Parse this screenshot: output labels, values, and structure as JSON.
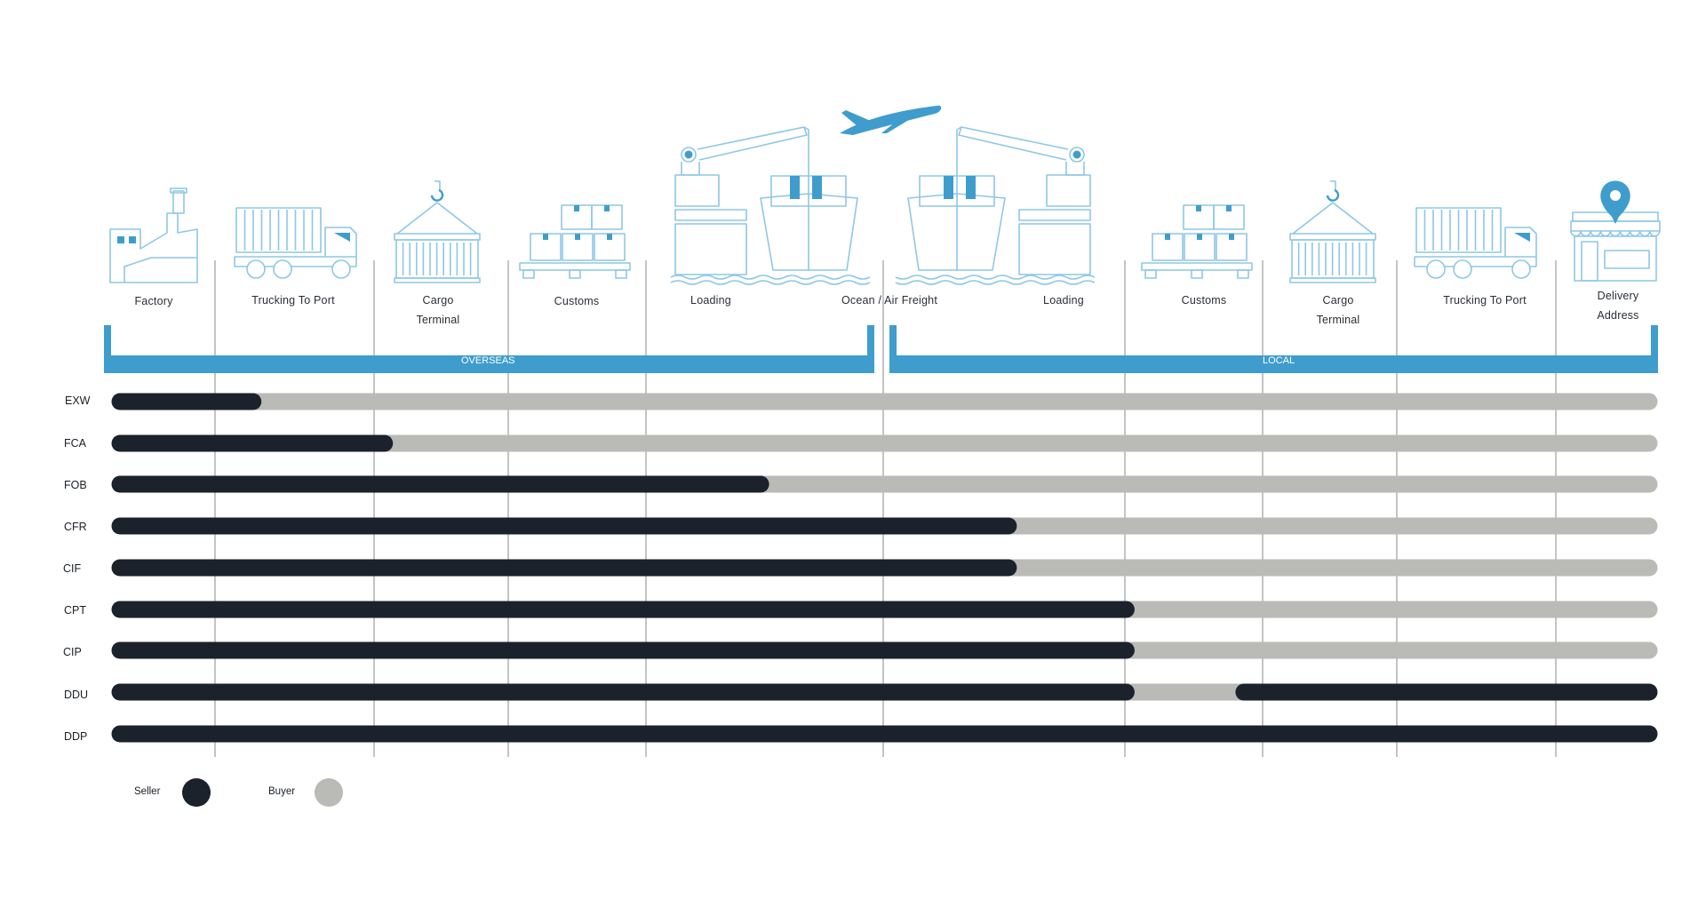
{
  "colors": {
    "accent": "#3f9dcd",
    "icon_stroke": "#8ec7e6",
    "seller": "#1b222b",
    "buyer": "#babab6",
    "divider": "#8a8a8a"
  },
  "steps": [
    {
      "label": "Factory",
      "icon": "factory-icon"
    },
    {
      "label": "Trucking To Port",
      "icon": "truck-icon"
    },
    {
      "label": "Cargo\nTerminal",
      "icon": "container-crane-icon"
    },
    {
      "label": "Customs",
      "icon": "boxes-pallet-icon"
    },
    {
      "label": "Loading",
      "icon": "crane-ship-icon"
    },
    {
      "label": "Ocean / Air Freight",
      "icon": "airplane-icon"
    },
    {
      "label": "Loading",
      "icon": "crane-ship-icon"
    },
    {
      "label": "Customs",
      "icon": "boxes-pallet-icon"
    },
    {
      "label": "Cargo\nTerminal",
      "icon": "container-crane-icon"
    },
    {
      "label": "Trucking To Port",
      "icon": "truck-icon"
    },
    {
      "label": "Delivery\nAddress",
      "icon": "store-pin-icon"
    }
  ],
  "regions": {
    "overseas": "OVERSEAS",
    "local": "LOCAL"
  },
  "incoterms": [
    {
      "code": "EXW",
      "segments": [
        {
          "party": "seller",
          "from": 0,
          "to": 0.087
        },
        {
          "party": "buyer",
          "from": 0.087,
          "to": 1
        }
      ]
    },
    {
      "code": "FCA",
      "segments": [
        {
          "party": "seller",
          "from": 0,
          "to": 0.173
        },
        {
          "party": "buyer",
          "from": 0.173,
          "to": 1
        }
      ]
    },
    {
      "code": "FOB",
      "segments": [
        {
          "party": "seller",
          "from": 0,
          "to": 0.419
        },
        {
          "party": "buyer",
          "from": 0.419,
          "to": 1
        }
      ]
    },
    {
      "code": "CFR",
      "segments": [
        {
          "party": "seller",
          "from": 0,
          "to": 0.581
        },
        {
          "party": "buyer",
          "from": 0.581,
          "to": 1
        }
      ]
    },
    {
      "code": "CIF",
      "segments": [
        {
          "party": "seller",
          "from": 0,
          "to": 0.581
        },
        {
          "party": "buyer",
          "from": 0.581,
          "to": 1
        }
      ]
    },
    {
      "code": "CPT",
      "segments": [
        {
          "party": "seller",
          "from": 0,
          "to": 0.658
        },
        {
          "party": "buyer",
          "from": 0.658,
          "to": 1
        }
      ]
    },
    {
      "code": "CIP",
      "segments": [
        {
          "party": "seller",
          "from": 0,
          "to": 0.658
        },
        {
          "party": "buyer",
          "from": 0.658,
          "to": 1
        }
      ]
    },
    {
      "code": "DDU",
      "segments": [
        {
          "party": "seller",
          "from": 0,
          "to": 0.658
        },
        {
          "party": "buyer",
          "from": 0.658,
          "to": 0.735
        },
        {
          "party": "seller",
          "from": 0.735,
          "to": 1
        }
      ]
    },
    {
      "code": "DDP",
      "segments": [
        {
          "party": "seller",
          "from": 0,
          "to": 1
        }
      ]
    }
  ],
  "legend": {
    "seller": "Seller",
    "buyer": "Buyer"
  }
}
